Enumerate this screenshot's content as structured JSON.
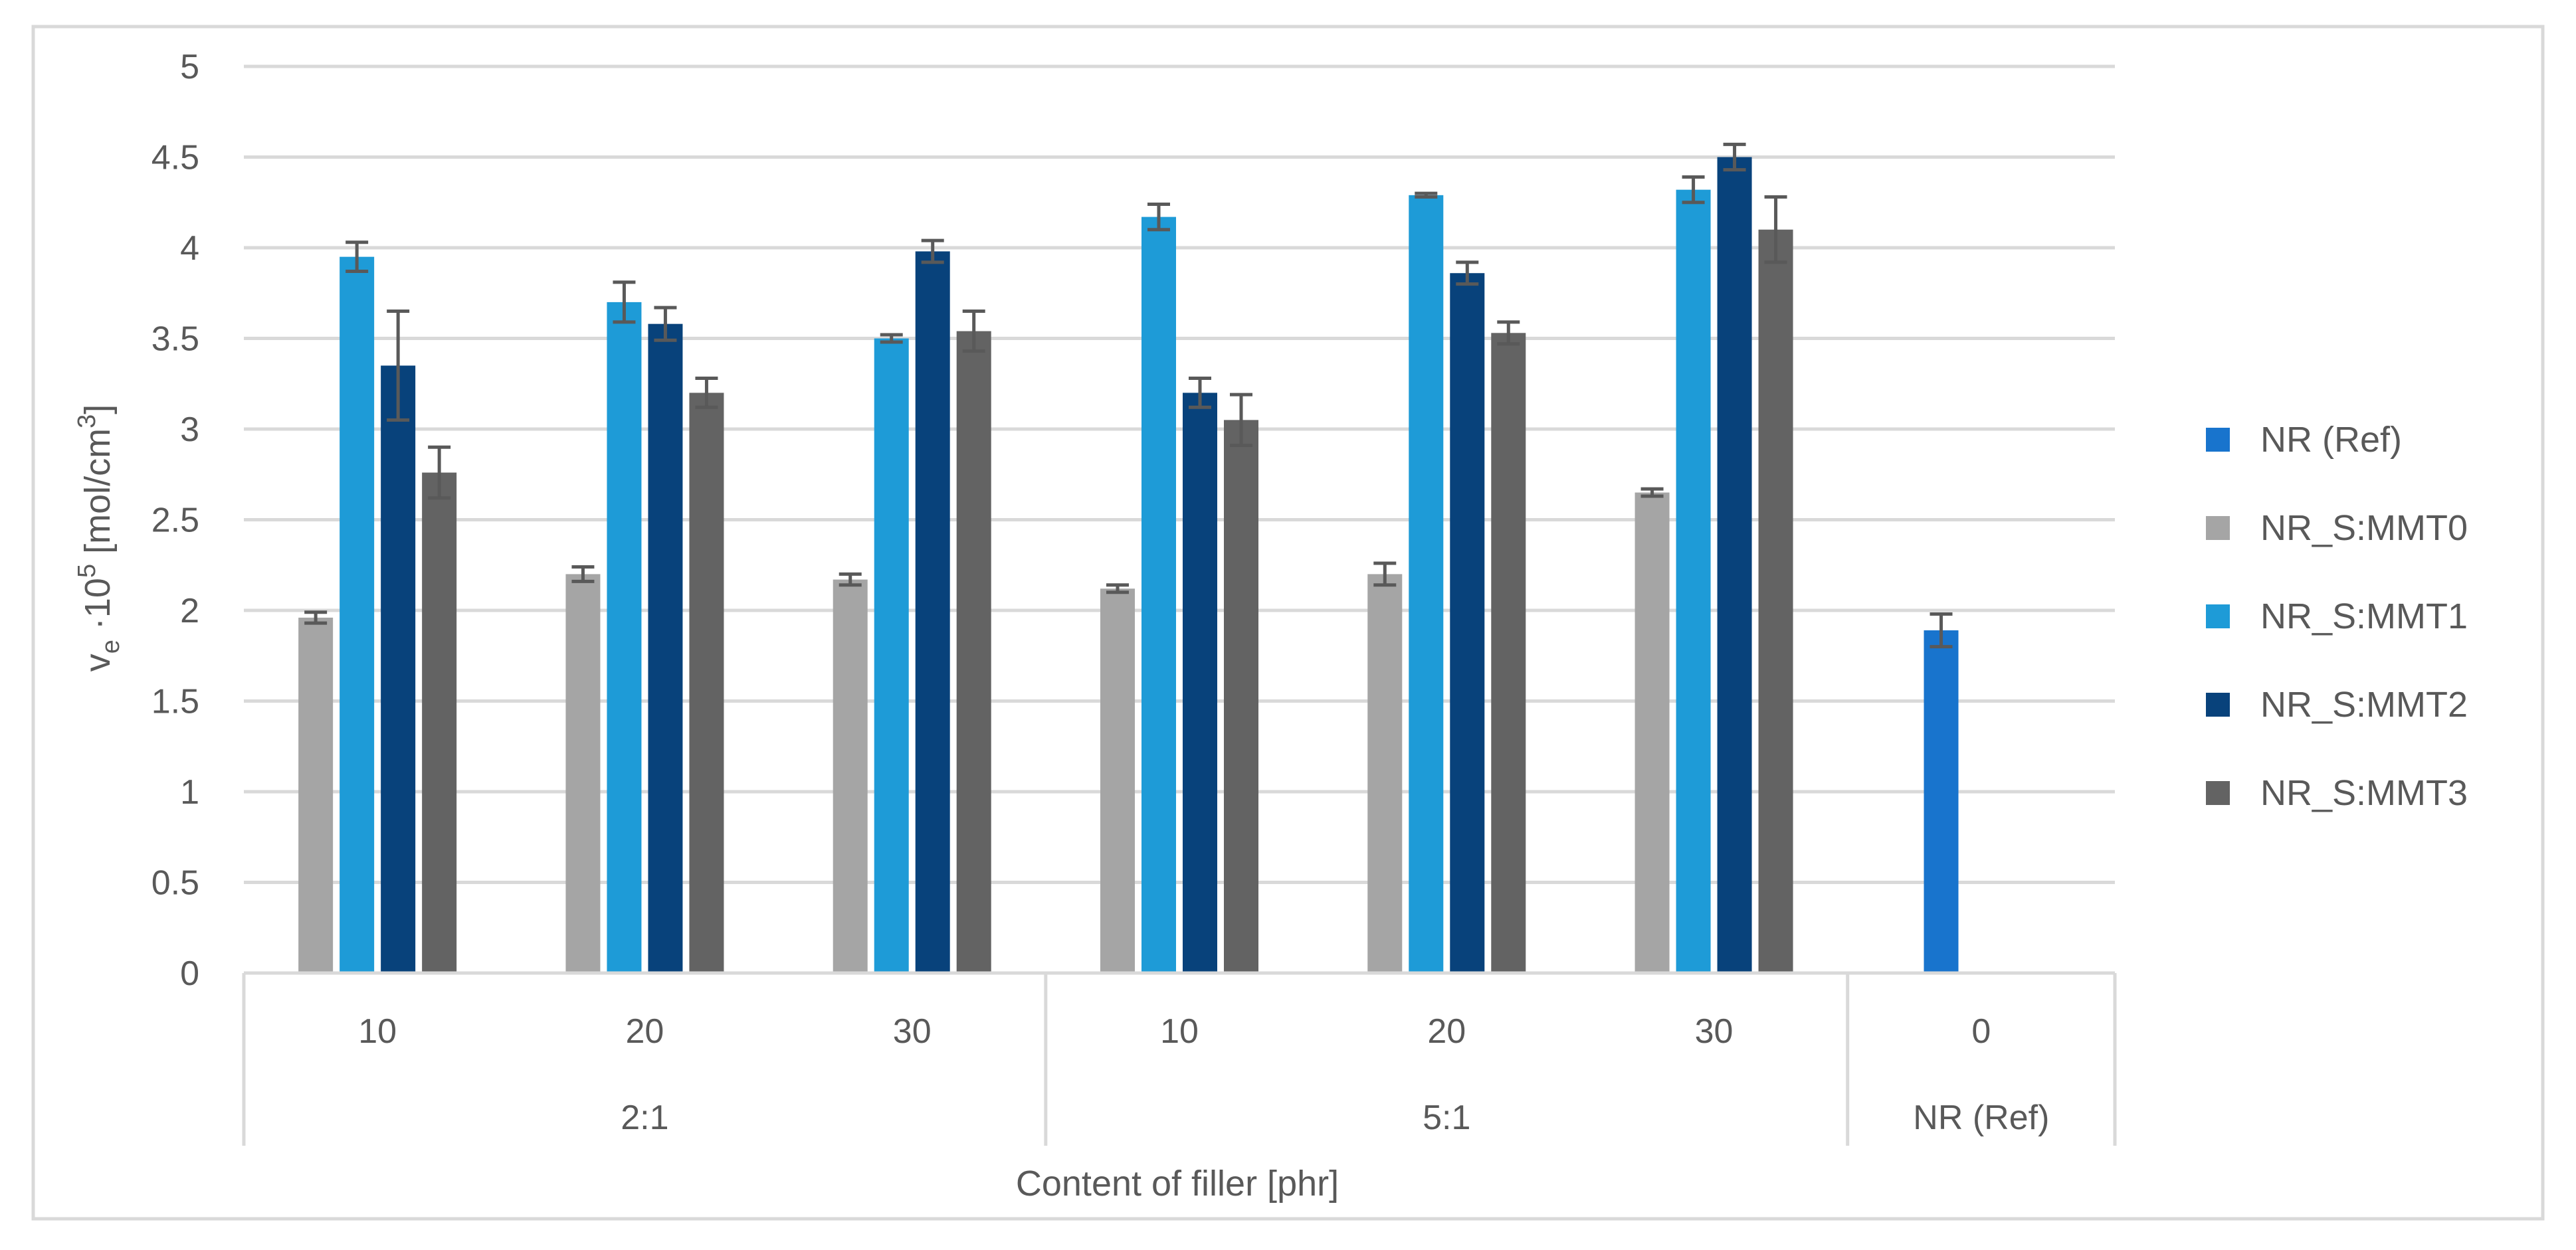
{
  "chart_data": {
    "type": "bar",
    "xlabel": "Content of filler [phr]",
    "ylabel": "v_e ·10^5 [mol/cm^3]",
    "ylabel_parts": {
      "v": "v",
      "sub": "e",
      "mid": " ·10",
      "sup": "5",
      "unit": " [mol/cm",
      "unit_sup": "3",
      "end": "]"
    },
    "ylim": [
      0,
      5
    ],
    "yticks": [
      "0",
      "0.5",
      "1",
      "1.5",
      "2",
      "2.5",
      "3",
      "3.5",
      "4",
      "4.5",
      "5"
    ],
    "grid": true,
    "legend_position": "right",
    "groups": [
      {
        "label": "2:1",
        "categories": [
          "10",
          "20",
          "30"
        ]
      },
      {
        "label": "5:1",
        "categories": [
          "10",
          "20",
          "30"
        ]
      },
      {
        "label": "NR (Ref)",
        "categories": [
          "0"
        ]
      }
    ],
    "series": [
      {
        "name": "NR (Ref)",
        "color": "#1874CD",
        "values": [
          null,
          null,
          null,
          null,
          null,
          null,
          1.89
        ],
        "errors": [
          null,
          null,
          null,
          null,
          null,
          null,
          0.09
        ]
      },
      {
        "name": "NR_S:MMT0",
        "color": "#A5A5A5",
        "values": [
          1.96,
          2.2,
          2.17,
          2.12,
          2.2,
          2.65,
          null
        ],
        "errors": [
          0.03,
          0.04,
          0.03,
          0.02,
          0.06,
          0.02,
          null
        ]
      },
      {
        "name": "NR_S:MMT1",
        "color": "#1E9BD7",
        "values": [
          3.95,
          3.7,
          3.5,
          4.17,
          4.29,
          4.32,
          null
        ],
        "errors": [
          0.08,
          0.11,
          0.02,
          0.07,
          0.01,
          0.07,
          null
        ]
      },
      {
        "name": "NR_S:MMT2",
        "color": "#08427B",
        "values": [
          3.35,
          3.58,
          3.98,
          3.2,
          3.86,
          4.5,
          null
        ],
        "errors": [
          0.3,
          0.09,
          0.06,
          0.08,
          0.06,
          0.07,
          null
        ]
      },
      {
        "name": "NR_S:MMT3",
        "color": "#636363",
        "values": [
          2.76,
          3.2,
          3.54,
          3.05,
          3.53,
          4.1,
          null
        ],
        "errors": [
          0.14,
          0.08,
          0.11,
          0.14,
          0.06,
          0.18,
          null
        ]
      }
    ]
  }
}
